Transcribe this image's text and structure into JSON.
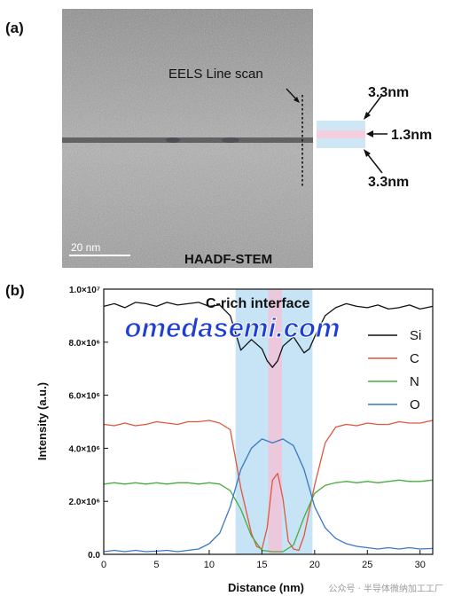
{
  "panel_a": {
    "label": "(a)",
    "line_scan_label": "EELS Line scan",
    "scale_bar_label": "20 nm",
    "image_label": "HAADF-STEM",
    "thickness_top": "3.3nm",
    "thickness_mid": "1.3nm",
    "thickness_bottom": "3.3nm",
    "colors": {
      "outer_band": "#cfe6f5",
      "inner_band": "#f4cfe0"
    }
  },
  "panel_b": {
    "label": "(b)"
  },
  "watermark": {
    "text": "omedasemi.com",
    "footer_text": "公众号 · 半导体微纳加工工厂",
    "color": "#1e3fd2"
  },
  "chart_data": {
    "type": "line",
    "annotation": "C-rich interface",
    "xlabel": "Distance (nm)",
    "ylabel": "Intensity (a.u.)",
    "xlim": [
      0,
      31.2
    ],
    "ylim": [
      0,
      10000000
    ],
    "xticks": [
      0,
      5,
      10,
      15,
      20,
      25,
      30
    ],
    "yticks": [
      {
        "value": 0,
        "label": "0.0"
      },
      {
        "value": 2000000,
        "label": "2.0×10⁶"
      },
      {
        "value": 4000000,
        "label": "4.0×10⁶"
      },
      {
        "value": 6000000,
        "label": "6.0×10⁶"
      },
      {
        "value": 8000000,
        "label": "8.0×10⁶"
      },
      {
        "value": 10000000,
        "label": "1.0×10⁷"
      }
    ],
    "shaded_regions": [
      {
        "x0": 12.5,
        "x1": 19.8,
        "color": "#bcdff3"
      },
      {
        "x0": 15.6,
        "x1": 16.9,
        "color": "#f2c3d8"
      }
    ],
    "legend_position": "right",
    "series": [
      {
        "name": "Si",
        "color": "#111111",
        "x": [
          0,
          1,
          2,
          3,
          4,
          5,
          6,
          7,
          8,
          9,
          10,
          11,
          12,
          13,
          14,
          15,
          15.5,
          16,
          16.5,
          17,
          18,
          19,
          19.5,
          20,
          21,
          22,
          23,
          24,
          25,
          26,
          27,
          28,
          29,
          30,
          31.2
        ],
        "y": [
          9350000,
          9450000,
          9300000,
          9500000,
          9450000,
          9350000,
          9500000,
          9400000,
          9450000,
          9500000,
          9350000,
          9400000,
          9000000,
          7700000,
          8100000,
          7750000,
          7300000,
          7050000,
          7300000,
          7850000,
          8200000,
          7600000,
          7750000,
          8200000,
          9000000,
          9300000,
          9450000,
          9350000,
          9300000,
          9400000,
          9250000,
          9300000,
          9400000,
          9250000,
          9350000
        ]
      },
      {
        "name": "C",
        "color": "#e2563e",
        "x": [
          0,
          1,
          2,
          3,
          4,
          5,
          6,
          7,
          8,
          9,
          10,
          11,
          12,
          13,
          14,
          14.5,
          15,
          15.5,
          16,
          16.5,
          17,
          17.5,
          18,
          18.5,
          19,
          20,
          21,
          22,
          23,
          24,
          25,
          26,
          27,
          28,
          29,
          30,
          31.2
        ],
        "y": [
          4900000,
          4850000,
          4950000,
          4850000,
          4900000,
          5000000,
          4950000,
          4900000,
          5000000,
          5000000,
          5050000,
          4950000,
          4700000,
          2500000,
          800000,
          300000,
          200000,
          1000000,
          2800000,
          3050000,
          2100000,
          500000,
          200000,
          150000,
          700000,
          2600000,
          4200000,
          4800000,
          4900000,
          4850000,
          4950000,
          4900000,
          4900000,
          5000000,
          4950000,
          4950000,
          5050000
        ]
      },
      {
        "name": "N",
        "color": "#47ad3f",
        "x": [
          0,
          1,
          2,
          3,
          4,
          5,
          6,
          7,
          8,
          9,
          10,
          11,
          12,
          13,
          14,
          15,
          16,
          17,
          18,
          19,
          20,
          21,
          22,
          23,
          24,
          25,
          26,
          27,
          28,
          29,
          30,
          31.2
        ],
        "y": [
          2650000,
          2700000,
          2650000,
          2700000,
          2650000,
          2700000,
          2650000,
          2700000,
          2700000,
          2650000,
          2700000,
          2650000,
          2400000,
          1700000,
          700000,
          150000,
          100000,
          100000,
          350000,
          1400000,
          2300000,
          2600000,
          2700000,
          2750000,
          2700000,
          2750000,
          2700000,
          2750000,
          2800000,
          2750000,
          2750000,
          2800000
        ]
      },
      {
        "name": "O",
        "color": "#3b78c4",
        "x": [
          0,
          1,
          2,
          3,
          4,
          5,
          6,
          7,
          8,
          9,
          10,
          11,
          12,
          13,
          14,
          15,
          16,
          17,
          18,
          19,
          20,
          21,
          22,
          23,
          24,
          25,
          26,
          27,
          28,
          29,
          30,
          31.2
        ],
        "y": [
          100000,
          150000,
          100000,
          150000,
          100000,
          120000,
          150000,
          100000,
          150000,
          200000,
          400000,
          800000,
          1800000,
          3200000,
          4000000,
          4350000,
          4200000,
          4350000,
          4100000,
          3200000,
          1800000,
          1000000,
          600000,
          400000,
          300000,
          250000,
          200000,
          250000,
          200000,
          250000,
          200000,
          220000
        ]
      }
    ]
  }
}
